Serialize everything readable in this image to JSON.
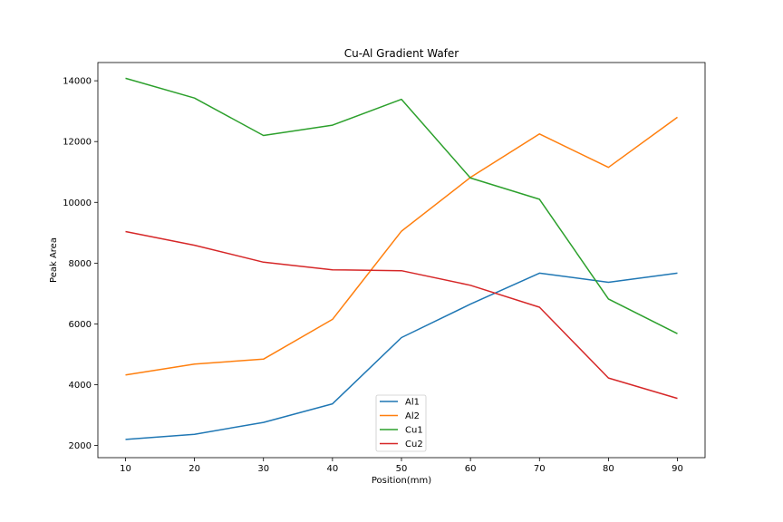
{
  "chart_data": {
    "type": "line",
    "title": "Cu-Al Gradient Wafer",
    "xlabel": "Position(mm)",
    "ylabel": "Peak Area",
    "x": [
      10,
      20,
      30,
      40,
      50,
      60,
      70,
      80,
      90
    ],
    "xlim": [
      6,
      94
    ],
    "ylim": [
      1600,
      14600
    ],
    "xticks": [
      10,
      20,
      30,
      40,
      50,
      60,
      70,
      80,
      90
    ],
    "yticks": [
      2000,
      4000,
      6000,
      8000,
      10000,
      12000,
      14000
    ],
    "grid": false,
    "legend_position": "bottom-center",
    "series": [
      {
        "name": "Al1",
        "color": "#1f77b4",
        "values": [
          2200,
          2370,
          2760,
          3370,
          5550,
          6650,
          7670,
          7370,
          7670
        ]
      },
      {
        "name": "Al2",
        "color": "#ff7f0e",
        "values": [
          4320,
          4680,
          4840,
          6150,
          9050,
          10820,
          12250,
          11150,
          12800
        ]
      },
      {
        "name": "Cu1",
        "color": "#2ca02c",
        "values": [
          14080,
          13430,
          12200,
          12540,
          13390,
          10800,
          10100,
          6820,
          5680
        ]
      },
      {
        "name": "Cu2",
        "color": "#d62728",
        "values": [
          9040,
          8590,
          8030,
          7780,
          7750,
          7270,
          6550,
          4220,
          3550
        ]
      }
    ]
  }
}
